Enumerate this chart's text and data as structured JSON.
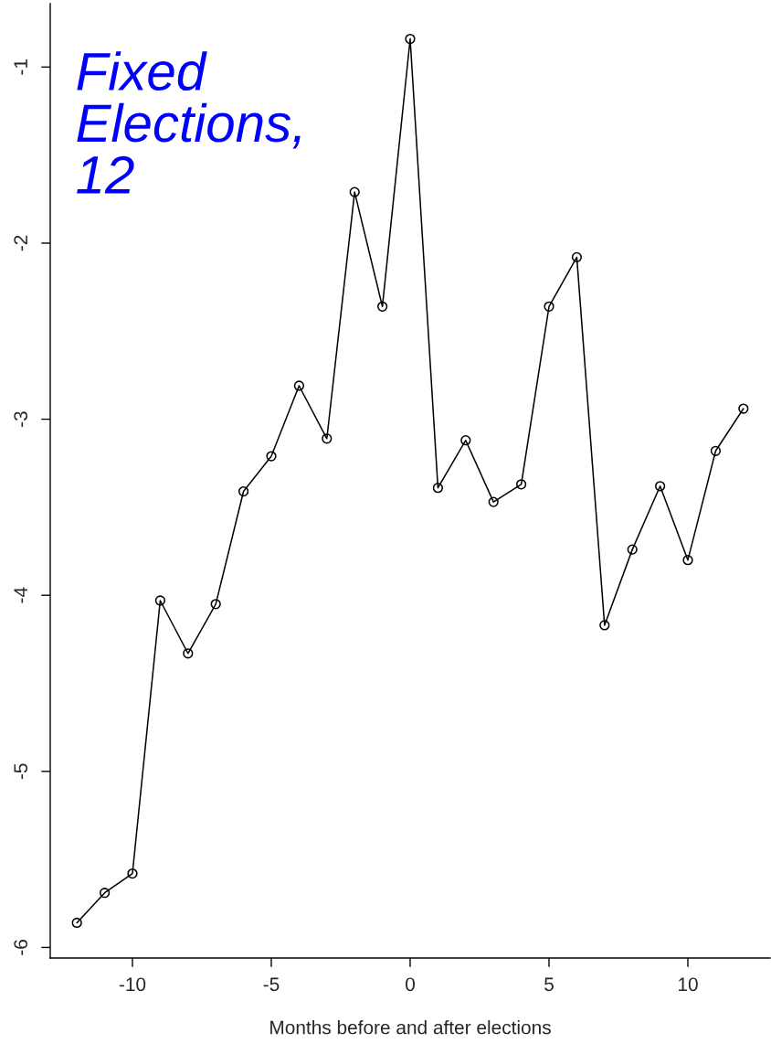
{
  "chart_data": {
    "type": "line",
    "xlabel": "Months before and after elections",
    "annotations": [
      "Fixed\nElections,\n12"
    ],
    "x": [
      -12,
      -11,
      -10,
      -9,
      -8,
      -7,
      -6,
      -5,
      -4,
      -3,
      -2,
      -1,
      0,
      1,
      2,
      3,
      4,
      5,
      6,
      7,
      8,
      9,
      10,
      11,
      12
    ],
    "series": [
      {
        "color": "#000000",
        "values": [
          -5.86,
          -5.69,
          -5.58,
          -4.03,
          -4.33,
          -4.05,
          -3.41,
          -3.21,
          -2.81,
          -3.11,
          -1.71,
          -2.36,
          -0.84,
          -3.39,
          -3.12,
          -3.47,
          -3.37,
          -2.36,
          -2.08,
          -4.17,
          -3.74,
          -3.38,
          -3.8,
          -3.18,
          -2.94
        ]
      }
    ],
    "marker": "circle",
    "line_style": "solid",
    "grid": false,
    "legend": false,
    "xlim": [
      -12.96,
      12.96
    ],
    "ylim": [
      -6.06,
      -0.64
    ],
    "xticks": [
      -10,
      -5,
      0,
      5,
      10
    ],
    "yticks": [
      -6,
      -5,
      -4,
      -3,
      -2,
      -1
    ]
  }
}
